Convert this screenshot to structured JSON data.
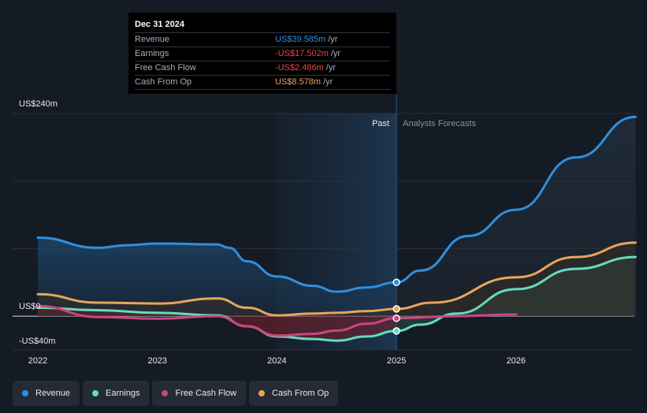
{
  "tooltip": {
    "date": "Dec 31 2024",
    "rows": [
      {
        "label": "Revenue",
        "value": "US$39.585m",
        "unit": "/yr",
        "color": "#2f8fdf"
      },
      {
        "label": "Earnings",
        "value": "-US$17.502m",
        "unit": "/yr",
        "color": "#e84545"
      },
      {
        "label": "Free Cash Flow",
        "value": "-US$2.486m",
        "unit": "/yr",
        "color": "#e84545"
      },
      {
        "label": "Cash From Op",
        "value": "US$8.578m",
        "unit": "/yr",
        "color": "#e8a55a"
      }
    ]
  },
  "legend": [
    {
      "label": "Revenue",
      "color": "#2f8fdf"
    },
    {
      "label": "Earnings",
      "color": "#63dcc1"
    },
    {
      "label": "Free Cash Flow",
      "color": "#c9467f"
    },
    {
      "label": "Cash From Op",
      "color": "#e8a55a"
    }
  ],
  "chart_data": {
    "type": "line",
    "title": "",
    "xlabel": "",
    "ylabel": "",
    "xlim": [
      2021.85,
      2026.99
    ],
    "ylim": [
      -40,
      240
    ],
    "x_ticks": [
      2022,
      2023,
      2024,
      2025,
      2026
    ],
    "y_tick_labels": [
      {
        "value": 240,
        "label": "US$240m"
      },
      {
        "value": 0,
        "label": "US$0"
      },
      {
        "value": -40,
        "label": "-US$40m"
      }
    ],
    "past_label": "Past",
    "forecast_label": "Analysts Forecasts",
    "divider_x": 2025.0,
    "highlight_start_x": 2024.0,
    "series": [
      {
        "name": "Revenue",
        "color": "#2f8fdf",
        "points": [
          [
            2022.0,
            93
          ],
          [
            2022.5,
            81
          ],
          [
            2022.75,
            84
          ],
          [
            2023.0,
            86
          ],
          [
            2023.5,
            85
          ],
          [
            2023.6,
            81
          ],
          [
            2023.75,
            65
          ],
          [
            2024.0,
            47
          ],
          [
            2024.3,
            36
          ],
          [
            2024.5,
            29
          ],
          [
            2024.75,
            34
          ],
          [
            2025.0,
            40
          ],
          [
            2025.2,
            54
          ],
          [
            2025.6,
            95
          ],
          [
            2026.0,
            126
          ],
          [
            2026.5,
            188
          ],
          [
            2027.0,
            236
          ]
        ]
      },
      {
        "name": "Earnings",
        "color": "#63dcc1",
        "points": [
          [
            2022.0,
            10
          ],
          [
            2022.5,
            7
          ],
          [
            2023.0,
            4
          ],
          [
            2023.5,
            1
          ],
          [
            2023.75,
            -12
          ],
          [
            2024.0,
            -24
          ],
          [
            2024.3,
            -27
          ],
          [
            2024.5,
            -29
          ],
          [
            2024.75,
            -24
          ],
          [
            2025.0,
            -17.5
          ],
          [
            2025.2,
            -10
          ],
          [
            2025.5,
            3
          ],
          [
            2026.0,
            32
          ],
          [
            2026.5,
            56
          ],
          [
            2027.0,
            70
          ]
        ]
      },
      {
        "name": "Free Cash Flow",
        "color": "#c9467f",
        "points": [
          [
            2022.0,
            12
          ],
          [
            2022.5,
            -1
          ],
          [
            2023.0,
            -3
          ],
          [
            2023.5,
            0
          ],
          [
            2023.75,
            -12
          ],
          [
            2024.0,
            -23
          ],
          [
            2024.3,
            -21
          ],
          [
            2024.5,
            -17
          ],
          [
            2024.75,
            -9
          ],
          [
            2025.0,
            -2.5
          ],
          [
            2025.5,
            0
          ],
          [
            2026.0,
            2
          ]
        ]
      },
      {
        "name": "Cash From Op",
        "color": "#e8a55a",
        "points": [
          [
            2022.0,
            26
          ],
          [
            2022.5,
            16
          ],
          [
            2023.0,
            15
          ],
          [
            2023.5,
            21
          ],
          [
            2023.75,
            10
          ],
          [
            2024.0,
            1
          ],
          [
            2024.3,
            3
          ],
          [
            2024.5,
            4
          ],
          [
            2024.75,
            6
          ],
          [
            2025.0,
            8.6
          ],
          [
            2025.3,
            16
          ],
          [
            2026.0,
            46
          ],
          [
            2026.5,
            70
          ],
          [
            2027.0,
            87
          ]
        ]
      }
    ],
    "markers": [
      {
        "series": "Revenue",
        "x": 2025.0,
        "y": 40
      },
      {
        "series": "Cash From Op",
        "x": 2025.0,
        "y": 8.6
      },
      {
        "series": "Free Cash Flow",
        "x": 2025.0,
        "y": -2.5
      },
      {
        "series": "Earnings",
        "x": 2025.0,
        "y": -17.5
      }
    ]
  }
}
